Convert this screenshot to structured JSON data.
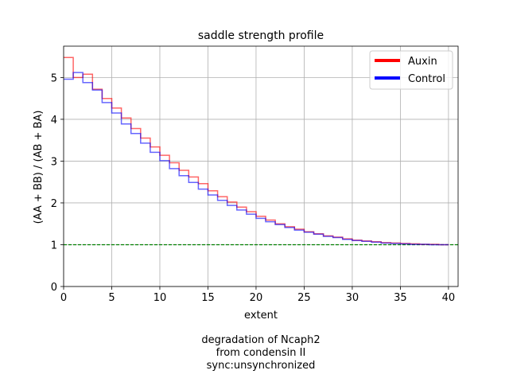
{
  "chart_data": {
    "type": "line",
    "step": true,
    "title": "saddle strength profile",
    "xlabel": "extent",
    "ylabel": "(AA + BB) / (AB + BA)",
    "xlim": [
      0,
      41
    ],
    "ylim": [
      0,
      5.75
    ],
    "xticks": [
      0,
      5,
      10,
      15,
      20,
      25,
      30,
      35,
      40
    ],
    "yticks": [
      0,
      1,
      2,
      3,
      4,
      5
    ],
    "grid": true,
    "legend_position": "top-right",
    "reference_line": {
      "y": 1,
      "color": "#008000",
      "style": "dashed"
    },
    "x": [
      0,
      1,
      2,
      3,
      4,
      5,
      6,
      7,
      8,
      9,
      10,
      11,
      12,
      13,
      14,
      15,
      16,
      17,
      18,
      19,
      20,
      21,
      22,
      23,
      24,
      25,
      26,
      27,
      28,
      29,
      30,
      31,
      32,
      33,
      34,
      35,
      36,
      37,
      38,
      39
    ],
    "series": [
      {
        "name": "Auxin",
        "color": "#ff0000",
        "values": [
          5.48,
          5.0,
          5.08,
          4.72,
          4.5,
          4.27,
          4.03,
          3.78,
          3.55,
          3.34,
          3.14,
          2.96,
          2.78,
          2.62,
          2.46,
          2.29,
          2.15,
          2.02,
          1.9,
          1.79,
          1.68,
          1.59,
          1.5,
          1.43,
          1.37,
          1.31,
          1.26,
          1.21,
          1.18,
          1.14,
          1.11,
          1.09,
          1.07,
          1.05,
          1.04,
          1.03,
          1.02,
          1.01,
          1.01,
          1.0
        ]
      },
      {
        "name": "Control",
        "color": "#0000ff",
        "values": [
          4.96,
          5.12,
          4.88,
          4.7,
          4.4,
          4.15,
          3.89,
          3.66,
          3.43,
          3.21,
          3.01,
          2.82,
          2.65,
          2.49,
          2.33,
          2.19,
          2.06,
          1.94,
          1.83,
          1.73,
          1.63,
          1.55,
          1.48,
          1.41,
          1.35,
          1.3,
          1.25,
          1.2,
          1.17,
          1.13,
          1.1,
          1.08,
          1.06,
          1.04,
          1.03,
          1.02,
          1.01,
          1.01,
          1.0,
          1.0
        ]
      }
    ]
  },
  "caption": {
    "line1": "degradation of Ncaph2",
    "line2": "from condensin II",
    "line3": "sync:unsynchronized"
  }
}
